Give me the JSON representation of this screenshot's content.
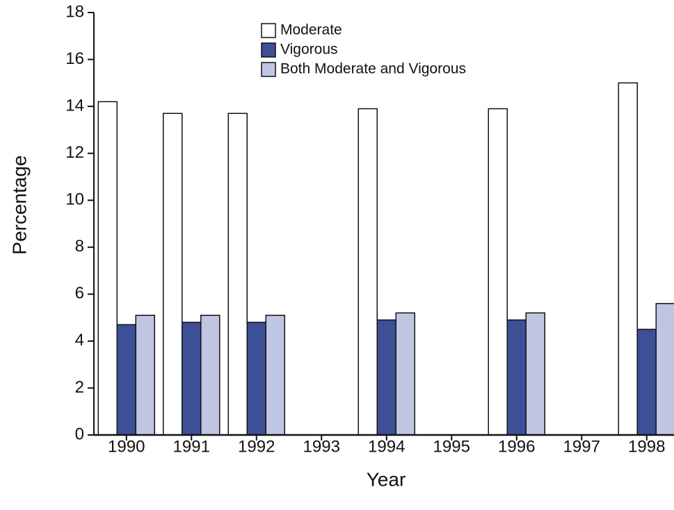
{
  "chart_data": {
    "type": "bar",
    "x_label": "Year",
    "y_label": "Percentage",
    "categories": [
      "1990",
      "1991",
      "1992",
      "1993",
      "1994",
      "1995",
      "1996",
      "1997",
      "1998"
    ],
    "series": [
      {
        "name": "Moderate",
        "color": "#ffffff",
        "values": [
          14.2,
          13.7,
          13.7,
          null,
          13.9,
          null,
          13.9,
          null,
          15.0
        ]
      },
      {
        "name": "Vigorous",
        "color": "#3d4f96",
        "values": [
          4.7,
          4.8,
          4.8,
          null,
          4.9,
          null,
          4.9,
          null,
          4.5
        ]
      },
      {
        "name": "Both Moderate and Vigorous",
        "color": "#c0c6e2",
        "values": [
          5.1,
          5.1,
          5.1,
          null,
          5.2,
          null,
          5.2,
          null,
          5.6
        ]
      }
    ],
    "ylim": [
      0,
      18
    ],
    "yticks": [
      0,
      2,
      4,
      6,
      8,
      10,
      12,
      14,
      16,
      18
    ],
    "grid": false,
    "legend": "top"
  }
}
